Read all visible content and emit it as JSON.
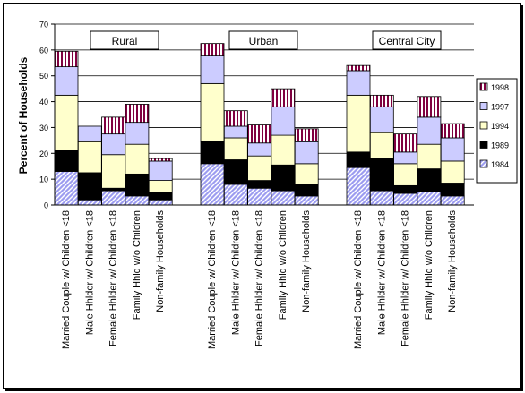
{
  "chart_data": {
    "type": "bar",
    "stacked": true,
    "ylabel": "Percent of Households",
    "ylim": [
      0,
      70
    ],
    "yticks": [
      0,
      10,
      20,
      30,
      40,
      50,
      60,
      70
    ],
    "grid": true,
    "legend_position": "right",
    "groups": [
      "Rural",
      "Urban",
      "Central City"
    ],
    "categories": [
      "Married Couple w/ Children <18",
      "Male Hhlder w/ Children <18",
      "Female Hhlder w/ Children <18",
      "Family Hhld w/o Children",
      "Non-family Households"
    ],
    "series": [
      {
        "name": "1984",
        "pattern": "diagonal-lavender",
        "values": {
          "Rural": [
            13,
            2,
            5.5,
            3.5,
            2
          ],
          "Urban": [
            16,
            8,
            6.5,
            5.5,
            3.5
          ],
          "Central City": [
            14.5,
            5.5,
            4.5,
            5,
            3.5
          ]
        }
      },
      {
        "name": "1989",
        "pattern": "black",
        "values": {
          "Rural": [
            8,
            10.5,
            1,
            8.5,
            3
          ],
          "Urban": [
            8.5,
            9.5,
            3,
            10,
            4.5
          ],
          "Central City": [
            6,
            12.5,
            3,
            9,
            5
          ]
        }
      },
      {
        "name": "1994",
        "pattern": "light-yellow",
        "values": {
          "Rural": [
            21.5,
            12,
            13,
            11.5,
            4.5
          ],
          "Urban": [
            22.5,
            8.5,
            9.5,
            11.5,
            8
          ],
          "Central City": [
            22,
            10,
            8.5,
            9.5,
            8.5
          ]
        }
      },
      {
        "name": "1997",
        "pattern": "lavender",
        "values": {
          "Rural": [
            11,
            6,
            8,
            8.5,
            7.5
          ],
          "Urban": [
            11,
            4.5,
            5,
            11,
            8.5
          ],
          "Central City": [
            9.5,
            10,
            4.5,
            10.5,
            9
          ]
        }
      },
      {
        "name": "1998",
        "pattern": "maroon-stripes",
        "values": {
          "Rural": [
            6,
            0,
            6.5,
            7,
            1
          ],
          "Urban": [
            4.5,
            6,
            7,
            7,
            5
          ],
          "Central City": [
            2,
            4.5,
            7,
            8,
            5.5
          ]
        }
      }
    ]
  }
}
